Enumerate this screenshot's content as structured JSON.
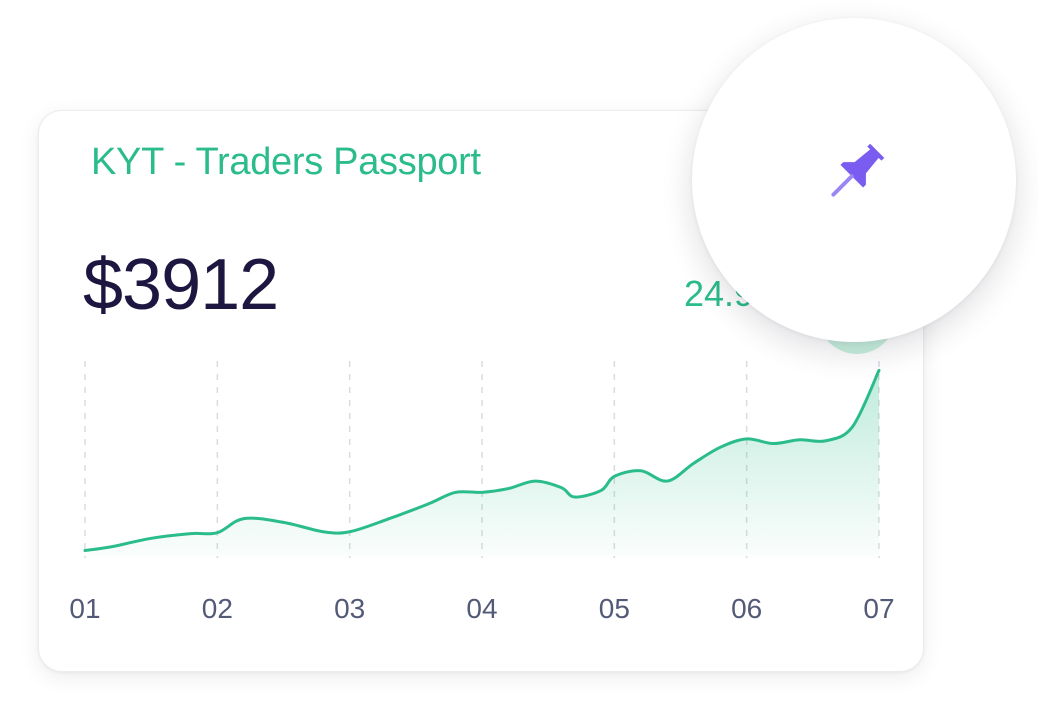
{
  "card": {
    "title": "KYT - Traders Passport",
    "amount": "$3912",
    "change": "24.9%"
  },
  "icons": {
    "trend": "arrow-up-right-icon",
    "pin": "pushpin-icon"
  },
  "colors": {
    "accent": "#2bbc8b",
    "amount_text": "#1c1640",
    "badge_bg": "#c7f0de",
    "pin": "#7b5cf0",
    "tick_text": "#535a78"
  },
  "chart_data": {
    "type": "area",
    "title": "",
    "xlabel": "",
    "ylabel": "",
    "categories": [
      "01",
      "02",
      "03",
      "04",
      "05",
      "06",
      "07"
    ],
    "x": [
      1,
      1.2,
      1.5,
      1.8,
      2.0,
      2.2,
      2.5,
      2.8,
      3.0,
      3.3,
      3.6,
      3.8,
      4.0,
      4.2,
      4.4,
      4.6,
      4.7,
      4.9,
      5.0,
      5.2,
      5.4,
      5.6,
      5.8,
      6.0,
      6.2,
      6.4,
      6.6,
      6.8,
      7.0
    ],
    "series": [
      {
        "values": [
          8,
          12,
          21,
          26,
          27,
          42,
          38,
          28,
          28,
          42,
          58,
          70,
          70,
          74,
          82,
          75,
          65,
          72,
          87,
          93,
          82,
          101,
          118,
          127,
          122,
          126,
          125,
          140,
          200
        ]
      }
    ],
    "ylim": [
      0,
      210
    ],
    "grid": "vertical dashed lines at each category",
    "fill": "gradient under line"
  }
}
